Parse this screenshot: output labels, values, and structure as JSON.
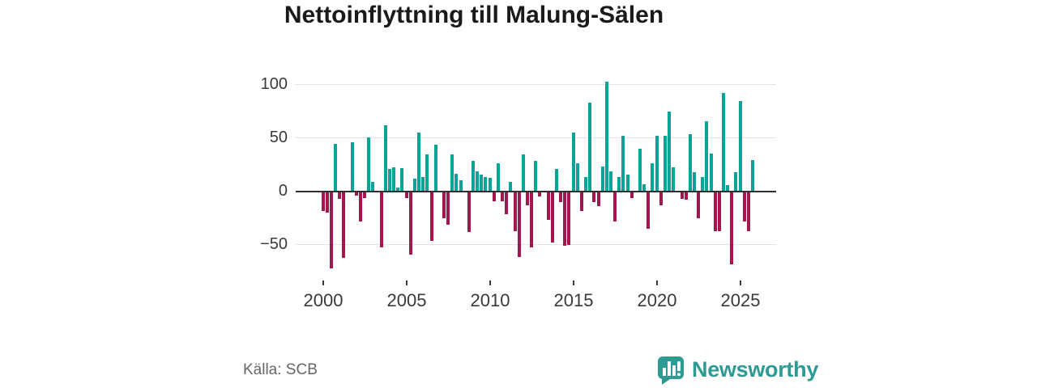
{
  "title": "Nettoinflyttning till Malung-Sälen",
  "footer": {
    "source": "Källa: SCB",
    "brand": "Newsworthy"
  },
  "colors": {
    "positive": "#0AA398",
    "negative": "#A1174E",
    "brand": "#2E9A94",
    "axis": "#2F2F2F",
    "grid": "#E3E3E3",
    "label": "#3A3A3A",
    "muted": "#666666"
  },
  "chart_data": {
    "type": "bar",
    "title": "Nettoinflyttning till Malung-Sälen",
    "x_unit": "quarter",
    "start": "2000Q1",
    "end": "2025Q4",
    "ylim": [
      -80,
      110
    ],
    "grid": true,
    "yticks": [
      {
        "value": 100,
        "label": "100"
      },
      {
        "value": 50,
        "label": "50"
      },
      {
        "value": 0,
        "label": "0"
      },
      {
        "value": -50,
        "label": "−50"
      }
    ],
    "xtick_years": [
      2000,
      2005,
      2010,
      2015,
      2020,
      2025
    ],
    "series": [
      {
        "year": 2000,
        "values": [
          -17,
          -19,
          -71,
          44
        ]
      },
      {
        "year": 2001,
        "values": [
          -6,
          -61,
          0,
          45
        ]
      },
      {
        "year": 2002,
        "values": [
          -3,
          -27,
          -5,
          50
        ]
      },
      {
        "year": 2003,
        "values": [
          8,
          0,
          -51,
          61
        ]
      },
      {
        "year": 2004,
        "values": [
          20,
          22,
          3,
          21
        ]
      },
      {
        "year": 2005,
        "values": [
          -5,
          -58,
          11,
          54
        ]
      },
      {
        "year": 2006,
        "values": [
          13,
          34,
          -45,
          43
        ]
      },
      {
        "year": 2007,
        "values": [
          0,
          -24,
          -30,
          34
        ]
      },
      {
        "year": 2008,
        "values": [
          16,
          10,
          0,
          -37
        ]
      },
      {
        "year": 2009,
        "values": [
          28,
          18,
          15,
          13
        ]
      },
      {
        "year": 2010,
        "values": [
          12,
          -8,
          26,
          -8
        ]
      },
      {
        "year": 2011,
        "values": [
          -20,
          8,
          -36,
          -60
        ]
      },
      {
        "year": 2012,
        "values": [
          34,
          -12,
          -51,
          28
        ]
      },
      {
        "year": 2013,
        "values": [
          -4,
          0,
          -26,
          -47
        ]
      },
      {
        "year": 2014,
        "values": [
          20,
          -9,
          -50,
          -49
        ]
      },
      {
        "year": 2015,
        "values": [
          54,
          26,
          -17,
          13
        ]
      },
      {
        "year": 2016,
        "values": [
          82,
          -9,
          -13,
          23
        ]
      },
      {
        "year": 2017,
        "values": [
          102,
          18,
          -27,
          13
        ]
      },
      {
        "year": 2018,
        "values": [
          51,
          15,
          -5,
          0
        ]
      },
      {
        "year": 2019,
        "values": [
          39,
          6,
          -34,
          26
        ]
      },
      {
        "year": 2020,
        "values": [
          51,
          -12,
          51,
          74
        ]
      },
      {
        "year": 2021,
        "values": [
          22,
          0,
          -6,
          -7
        ]
      },
      {
        "year": 2022,
        "values": [
          53,
          17,
          -24,
          13
        ]
      },
      {
        "year": 2023,
        "values": [
          65,
          35,
          -36,
          -36
        ]
      },
      {
        "year": 2024,
        "values": [
          91,
          5,
          -67,
          17
        ]
      },
      {
        "year": 2025,
        "values": [
          84,
          -27,
          -36,
          29
        ]
      }
    ]
  }
}
